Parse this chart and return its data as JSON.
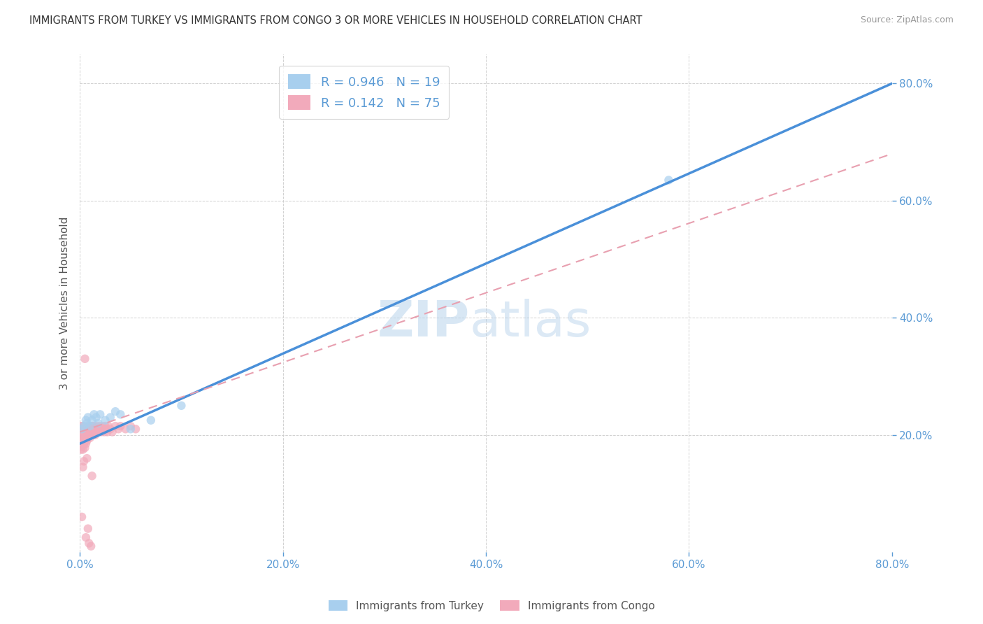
{
  "title": "IMMIGRANTS FROM TURKEY VS IMMIGRANTS FROM CONGO 3 OR MORE VEHICLES IN HOUSEHOLD CORRELATION CHART",
  "source": "Source: ZipAtlas.com",
  "ylabel": "3 or more Vehicles in Household",
  "legend_turkey": "Immigrants from Turkey",
  "legend_congo": "Immigrants from Congo",
  "R_turkey": 0.946,
  "N_turkey": 19,
  "R_congo": 0.142,
  "N_congo": 75,
  "color_turkey": "#A8CFEE",
  "color_congo": "#F2AABB",
  "color_turkey_line": "#4A90D9",
  "color_congo_line": "#E8A0B0",
  "xlim": [
    0.0,
    0.8
  ],
  "ylim": [
    0.0,
    0.85
  ],
  "xticks": [
    0.0,
    0.2,
    0.4,
    0.6,
    0.8
  ],
  "yticks": [
    0.2,
    0.4,
    0.6,
    0.8
  ],
  "turkey_line_x0": 0.0,
  "turkey_line_y0": 0.185,
  "turkey_line_x1": 0.8,
  "turkey_line_y1": 0.8,
  "congo_line_x0": 0.0,
  "congo_line_y0": 0.205,
  "congo_line_x1": 0.8,
  "congo_line_y1": 0.68,
  "turkey_x": [
    0.002,
    0.004,
    0.006,
    0.007,
    0.008,
    0.01,
    0.012,
    0.014,
    0.016,
    0.018,
    0.02,
    0.025,
    0.03,
    0.035,
    0.04,
    0.05,
    0.07,
    0.1,
    0.58
  ],
  "turkey_y": [
    0.21,
    0.215,
    0.225,
    0.22,
    0.23,
    0.215,
    0.225,
    0.235,
    0.23,
    0.22,
    0.235,
    0.225,
    0.23,
    0.24,
    0.235,
    0.21,
    0.225,
    0.25,
    0.635
  ],
  "congo_x": [
    0.001,
    0.001,
    0.001,
    0.001,
    0.001,
    0.002,
    0.002,
    0.002,
    0.002,
    0.003,
    0.003,
    0.003,
    0.003,
    0.004,
    0.004,
    0.004,
    0.005,
    0.005,
    0.005,
    0.005,
    0.006,
    0.006,
    0.006,
    0.007,
    0.007,
    0.007,
    0.008,
    0.008,
    0.008,
    0.009,
    0.009,
    0.01,
    0.01,
    0.01,
    0.011,
    0.011,
    0.012,
    0.012,
    0.013,
    0.013,
    0.014,
    0.014,
    0.015,
    0.015,
    0.016,
    0.017,
    0.018,
    0.019,
    0.02,
    0.021,
    0.022,
    0.023,
    0.024,
    0.025,
    0.026,
    0.027,
    0.028,
    0.03,
    0.032,
    0.035,
    0.038,
    0.04,
    0.045,
    0.05,
    0.055,
    0.008,
    0.012,
    0.005,
    0.007,
    0.004,
    0.003,
    0.002,
    0.006,
    0.009,
    0.011
  ],
  "congo_y": [
    0.205,
    0.215,
    0.195,
    0.185,
    0.175,
    0.21,
    0.2,
    0.195,
    0.18,
    0.215,
    0.205,
    0.19,
    0.175,
    0.21,
    0.195,
    0.185,
    0.21,
    0.2,
    0.19,
    0.178,
    0.205,
    0.195,
    0.185,
    0.21,
    0.2,
    0.19,
    0.215,
    0.205,
    0.195,
    0.21,
    0.2,
    0.215,
    0.205,
    0.195,
    0.21,
    0.2,
    0.215,
    0.205,
    0.21,
    0.2,
    0.215,
    0.205,
    0.21,
    0.2,
    0.215,
    0.21,
    0.205,
    0.215,
    0.21,
    0.205,
    0.215,
    0.21,
    0.205,
    0.215,
    0.21,
    0.205,
    0.215,
    0.21,
    0.205,
    0.215,
    0.21,
    0.215,
    0.21,
    0.215,
    0.21,
    0.04,
    0.13,
    0.33,
    0.16,
    0.155,
    0.145,
    0.06,
    0.025,
    0.015,
    0.01
  ],
  "watermark_zip": "ZIP",
  "watermark_atlas": "atlas",
  "background_color": "#FFFFFF",
  "grid_color": "#CCCCCC",
  "tick_color": "#5B9BD5"
}
